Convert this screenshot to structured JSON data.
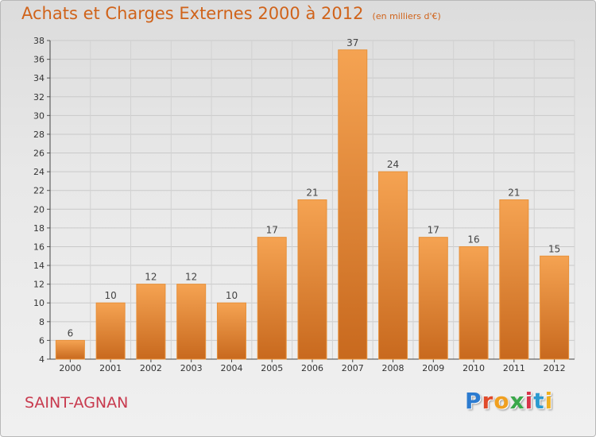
{
  "header": {
    "title": "Achats et Charges Externes 2000 à 2012",
    "subtitle": "(en milliers d'€)"
  },
  "footer": {
    "commune": "SAINT-AGNAN",
    "logo_text": "Proxiti"
  },
  "colors": {
    "title": "#d0631a",
    "commune": "#c83a4e",
    "bar_light": "#f5a352",
    "bar_dark": "#c8691e"
  },
  "chart_data": {
    "type": "bar",
    "title": "Achats et Charges Externes 2000 à 2012",
    "subtitle": "(en milliers d'€)",
    "categories": [
      "2000",
      "2001",
      "2002",
      "2003",
      "2004",
      "2005",
      "2006",
      "2007",
      "2008",
      "2009",
      "2010",
      "2011",
      "2012"
    ],
    "values": [
      6,
      10,
      12,
      12,
      10,
      17,
      21,
      37,
      24,
      17,
      16,
      21,
      15
    ],
    "ylim": [
      4,
      38
    ],
    "yticks": [
      4,
      6,
      8,
      10,
      12,
      14,
      16,
      18,
      20,
      22,
      24,
      26,
      28,
      30,
      32,
      34,
      36,
      38
    ],
    "grid": true,
    "data_labels": true,
    "xlabel": "",
    "ylabel": ""
  }
}
